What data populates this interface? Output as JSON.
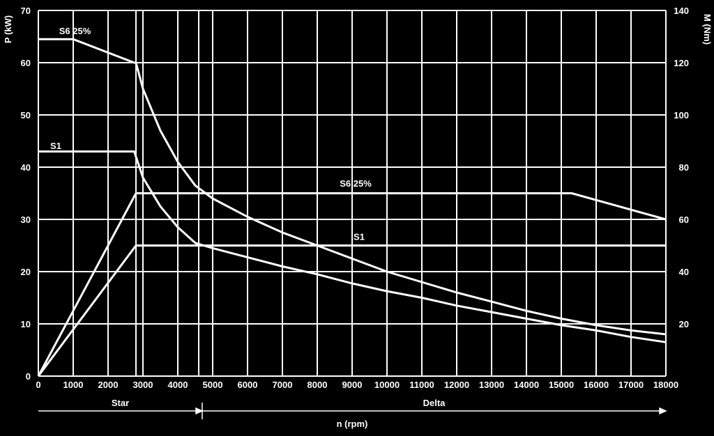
{
  "chart_data": {
    "type": "line",
    "xlabel": "n (rpm)",
    "ylabel_left": "P (kW)",
    "ylabel_right": "M (Nm)",
    "xlim": [
      0,
      18000
    ],
    "ylim_left": [
      0,
      70
    ],
    "ylim_right": [
      0,
      140
    ],
    "grid": true,
    "x_ticks": [
      "0",
      "1000",
      "2000",
      "2800",
      "3000",
      "4000",
      "4600",
      "5000",
      "6000",
      "7000",
      "8000",
      "9000",
      "10000",
      "11000",
      "12000",
      "13000",
      "14000",
      "15000",
      "16000",
      "17000",
      "18000"
    ],
    "x_tick_values": [
      0,
      1000,
      2000,
      2800,
      3000,
      4000,
      4600,
      5000,
      6000,
      7000,
      8000,
      9000,
      10000,
      11000,
      12000,
      13000,
      14000,
      15000,
      16000,
      17000,
      18000
    ],
    "x_tick_labels_shown": [
      "0",
      "1000",
      "2000",
      "",
      "3000",
      "4000",
      "",
      "5000",
      "6000",
      "7000",
      "8000",
      "9000",
      "10000",
      "11000",
      "12000",
      "13000",
      "14000",
      "15000",
      "16000",
      "17000",
      "18000"
    ],
    "y_ticks_left": [
      "0",
      "10",
      "20",
      "30",
      "40",
      "50",
      "60",
      "70"
    ],
    "y_tick_values_left": [
      0,
      10,
      20,
      30,
      40,
      50,
      60,
      70
    ],
    "y_ticks_right": [
      "20",
      "40",
      "60",
      "80",
      "100",
      "120",
      "140"
    ],
    "y_tick_values_right": [
      20,
      40,
      60,
      80,
      100,
      120,
      140
    ],
    "series": [
      {
        "name": "S6 25%",
        "axis": "right",
        "x": [
          0,
          1000,
          2750,
          2800,
          3000,
          3500,
          4000,
          4500,
          5000,
          6000,
          7000,
          8000,
          9000,
          10000,
          11000,
          12000,
          13000,
          14000,
          15000,
          16000,
          17000,
          18000
        ],
        "y": [
          129,
          129,
          120,
          120,
          110,
          94,
          82,
          73,
          68,
          61,
          55,
          50,
          45,
          40,
          36,
          32,
          28.5,
          25,
          22,
          19.5,
          17.5,
          16
        ]
      },
      {
        "name": "S1",
        "axis": "right",
        "x": [
          0,
          2750,
          2800,
          3000,
          3500,
          4000,
          4500,
          5000,
          6000,
          7000,
          8000,
          9000,
          10000,
          11000,
          12000,
          13000,
          14000,
          15000,
          16000,
          17000,
          18000
        ],
        "y": [
          86,
          86,
          84,
          76,
          65,
          57,
          51,
          49,
          45.5,
          42,
          39,
          35.5,
          32.5,
          30,
          27,
          24.5,
          22,
          19.5,
          17.5,
          15,
          13
        ]
      },
      {
        "name": "S6 25%",
        "axis": "left",
        "x": [
          0,
          2800,
          15300,
          18000
        ],
        "y": [
          0,
          35,
          35,
          30
        ]
      },
      {
        "name": "S1",
        "axis": "left",
        "x": [
          0,
          2800,
          18000
        ],
        "y": [
          0,
          25,
          25
        ]
      }
    ],
    "labels": [
      {
        "text": "S6 25%",
        "x": 1050,
        "y": 65.5
      },
      {
        "text": "S1",
        "x": 500,
        "y": 43.5
      },
      {
        "text": "S6 25%",
        "x": 9100,
        "y": 36.3
      },
      {
        "text": "S1",
        "x": 9200,
        "y": 26.1
      }
    ],
    "ranges": [
      {
        "label": "Star",
        "from": 0,
        "to": 4700
      },
      {
        "label": "Delta",
        "from": 4700,
        "to": 18000
      }
    ]
  }
}
